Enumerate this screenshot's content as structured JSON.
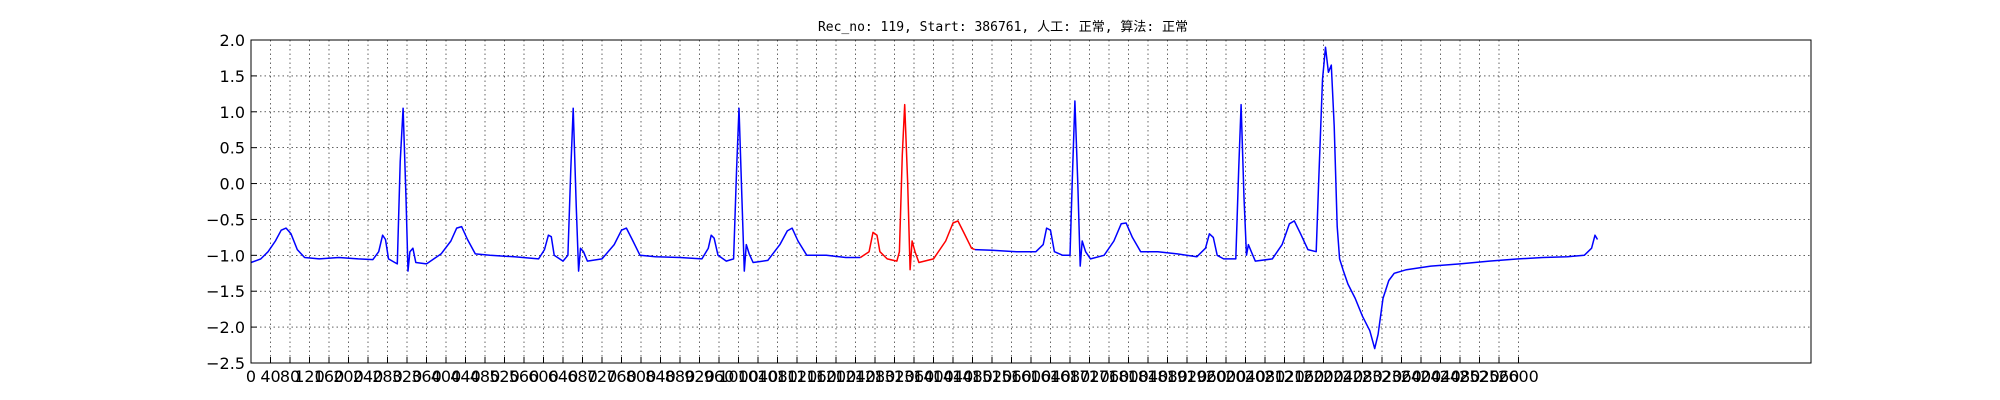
{
  "chart_data": {
    "type": "line",
    "title": "Rec_no: 119, Start: 386761, 人工: 正常, 算法: 正常",
    "xlabel": "",
    "ylabel": "",
    "xlim": [
      0,
      3200
    ],
    "ylim": [
      -2.5,
      2.0
    ],
    "yticks": [
      "2.0",
      "1.5",
      "1.0",
      "0.5",
      "0.0",
      "−0.5",
      "−1.0",
      "−1.5",
      "−2.0",
      "−2.5"
    ],
    "xticks": [
      "0",
      "40",
      "80",
      "120",
      "160",
      "200",
      "240",
      "280",
      "320",
      "360",
      "400",
      "440",
      "480",
      "520",
      "560",
      "600",
      "640",
      "680",
      "720",
      "760",
      "800",
      "840",
      "880",
      "920",
      "960",
      "1000",
      "1040",
      "1080",
      "1120",
      "1160",
      "1200",
      "1240",
      "1280",
      "1320",
      "1360",
      "1400",
      "1440",
      "1480",
      "1520",
      "1560",
      "1600",
      "1640",
      "1680",
      "1720",
      "1760",
      "1800",
      "1840",
      "1880",
      "1920",
      "1960",
      "2000",
      "2040",
      "2080",
      "2120",
      "2160",
      "2200",
      "2240",
      "2280",
      "2320",
      "2360",
      "2400",
      "2440",
      "2480",
      "2520",
      "2560",
      "2600"
    ],
    "grid": true,
    "series": [
      {
        "color": "#0000ff",
        "points": [
          [
            0,
            -1.1
          ],
          [
            20,
            -1.05
          ],
          [
            35,
            -0.95
          ],
          [
            50,
            -0.8
          ],
          [
            62,
            -0.65
          ],
          [
            72,
            -0.62
          ],
          [
            82,
            -0.7
          ],
          [
            95,
            -0.92
          ],
          [
            110,
            -1.03
          ],
          [
            140,
            -1.05
          ],
          [
            180,
            -1.03
          ],
          [
            220,
            -1.05
          ],
          [
            250,
            -1.06
          ],
          [
            262,
            -0.95
          ],
          [
            270,
            -0.72
          ],
          [
            276,
            -0.78
          ],
          [
            282,
            -1.05
          ],
          [
            295,
            -1.1
          ],
          [
            300,
            -1.12
          ],
          [
            306,
            0.3
          ],
          [
            312,
            1.05
          ],
          [
            318,
            -0.2
          ],
          [
            322,
            -1.22
          ],
          [
            326,
            -0.95
          ],
          [
            332,
            -0.9
          ],
          [
            338,
            -1.1
          ],
          [
            360,
            -1.12
          ],
          [
            390,
            -0.98
          ],
          [
            410,
            -0.8
          ],
          [
            422,
            -0.62
          ],
          [
            432,
            -0.6
          ],
          [
            444,
            -0.78
          ],
          [
            460,
            -0.98
          ],
          [
            490,
            -1.0
          ],
          [
            540,
            -1.02
          ],
          [
            590,
            -1.05
          ],
          [
            602,
            -0.92
          ],
          [
            610,
            -0.72
          ],
          [
            616,
            -0.74
          ],
          [
            622,
            -1.0
          ],
          [
            640,
            -1.08
          ],
          [
            650,
            -1.0
          ],
          [
            656,
            0.2
          ],
          [
            661,
            1.05
          ],
          [
            667,
            -0.3
          ],
          [
            672,
            -1.22
          ],
          [
            676,
            -0.9
          ],
          [
            682,
            -0.95
          ],
          [
            690,
            -1.08
          ],
          [
            720,
            -1.05
          ],
          [
            745,
            -0.85
          ],
          [
            760,
            -0.65
          ],
          [
            770,
            -0.62
          ],
          [
            782,
            -0.78
          ],
          [
            798,
            -1.0
          ],
          [
            830,
            -1.02
          ],
          [
            880,
            -1.03
          ],
          [
            925,
            -1.05
          ],
          [
            938,
            -0.9
          ],
          [
            944,
            -0.72
          ],
          [
            950,
            -0.76
          ],
          [
            958,
            -1.0
          ],
          [
            975,
            -1.08
          ],
          [
            990,
            -1.05
          ],
          [
            996,
            0.2
          ],
          [
            1001,
            1.05
          ],
          [
            1007,
            -0.2
          ],
          [
            1012,
            -1.22
          ],
          [
            1016,
            -0.85
          ],
          [
            1022,
            -0.98
          ],
          [
            1030,
            -1.1
          ],
          [
            1060,
            -1.07
          ],
          [
            1085,
            -0.85
          ],
          [
            1100,
            -0.66
          ],
          [
            1110,
            -0.62
          ],
          [
            1122,
            -0.8
          ],
          [
            1140,
            -1.0
          ],
          [
            1180,
            -1.0
          ],
          [
            1220,
            -1.03
          ],
          [
            1250,
            -1.03
          ]
        ]
      },
      {
        "color": "#ff0000",
        "points": [
          [
            1250,
            -1.03
          ],
          [
            1268,
            -0.95
          ],
          [
            1276,
            -0.68
          ],
          [
            1284,
            -0.72
          ],
          [
            1290,
            -0.95
          ],
          [
            1305,
            -1.05
          ],
          [
            1325,
            -1.08
          ],
          [
            1330,
            -0.95
          ],
          [
            1336,
            0.4
          ],
          [
            1341,
            1.1
          ],
          [
            1347,
            0.0
          ],
          [
            1352,
            -1.2
          ],
          [
            1356,
            -0.8
          ],
          [
            1362,
            -0.95
          ],
          [
            1370,
            -1.1
          ],
          [
            1400,
            -1.05
          ],
          [
            1425,
            -0.8
          ],
          [
            1440,
            -0.55
          ],
          [
            1450,
            -0.52
          ],
          [
            1462,
            -0.68
          ],
          [
            1478,
            -0.9
          ],
          [
            1485,
            -0.92
          ]
        ]
      },
      {
        "color": "#0000ff",
        "points": [
          [
            1485,
            -0.92
          ],
          [
            1520,
            -0.93
          ],
          [
            1570,
            -0.95
          ],
          [
            1610,
            -0.95
          ],
          [
            1625,
            -0.85
          ],
          [
            1632,
            -0.62
          ],
          [
            1640,
            -0.65
          ],
          [
            1648,
            -0.95
          ],
          [
            1665,
            -1.0
          ],
          [
            1680,
            -1.0
          ],
          [
            1685,
            0.1
          ],
          [
            1690,
            1.15
          ],
          [
            1696,
            0.0
          ],
          [
            1701,
            -1.15
          ],
          [
            1705,
            -0.8
          ],
          [
            1712,
            -0.95
          ],
          [
            1722,
            -1.05
          ],
          [
            1750,
            -1.0
          ],
          [
            1770,
            -0.8
          ],
          [
            1785,
            -0.56
          ],
          [
            1795,
            -0.55
          ],
          [
            1808,
            -0.75
          ],
          [
            1825,
            -0.95
          ],
          [
            1860,
            -0.95
          ],
          [
            1900,
            -0.98
          ],
          [
            1940,
            -1.02
          ],
          [
            1958,
            -0.9
          ],
          [
            1966,
            -0.7
          ],
          [
            1974,
            -0.75
          ],
          [
            1982,
            -1.0
          ],
          [
            1995,
            -1.05
          ],
          [
            2020,
            -1.05
          ],
          [
            2026,
            0.2
          ],
          [
            2031,
            1.1
          ],
          [
            2037,
            -0.2
          ],
          [
            2042,
            -1.0
          ],
          [
            2046,
            -0.85
          ],
          [
            2052,
            -0.95
          ],
          [
            2060,
            -1.08
          ],
          [
            2095,
            -1.05
          ],
          [
            2115,
            -0.85
          ],
          [
            2130,
            -0.56
          ],
          [
            2140,
            -0.52
          ],
          [
            2153,
            -0.7
          ],
          [
            2168,
            -0.92
          ],
          [
            2185,
            -0.95
          ],
          [
            2190,
            0.0
          ],
          [
            2198,
            1.45
          ],
          [
            2204,
            1.9
          ],
          [
            2210,
            1.55
          ],
          [
            2216,
            1.65
          ],
          [
            2222,
            0.8
          ],
          [
            2228,
            -0.6
          ],
          [
            2233,
            -1.05
          ],
          [
            2240,
            -1.2
          ],
          [
            2250,
            -1.4
          ],
          [
            2265,
            -1.6
          ],
          [
            2280,
            -1.85
          ],
          [
            2295,
            -2.05
          ],
          [
            2305,
            -2.3
          ],
          [
            2312,
            -2.1
          ],
          [
            2322,
            -1.6
          ],
          [
            2334,
            -1.35
          ],
          [
            2345,
            -1.25
          ],
          [
            2370,
            -1.2
          ],
          [
            2420,
            -1.15
          ],
          [
            2480,
            -1.12
          ],
          [
            2540,
            -1.08
          ],
          [
            2600,
            -1.05
          ],
          [
            2650,
            -1.03
          ],
          [
            2700,
            -1.02
          ],
          [
            2735,
            -1.0
          ],
          [
            2750,
            -0.9
          ],
          [
            2757,
            -0.72
          ],
          [
            2762,
            -0.78
          ]
        ]
      }
    ]
  }
}
